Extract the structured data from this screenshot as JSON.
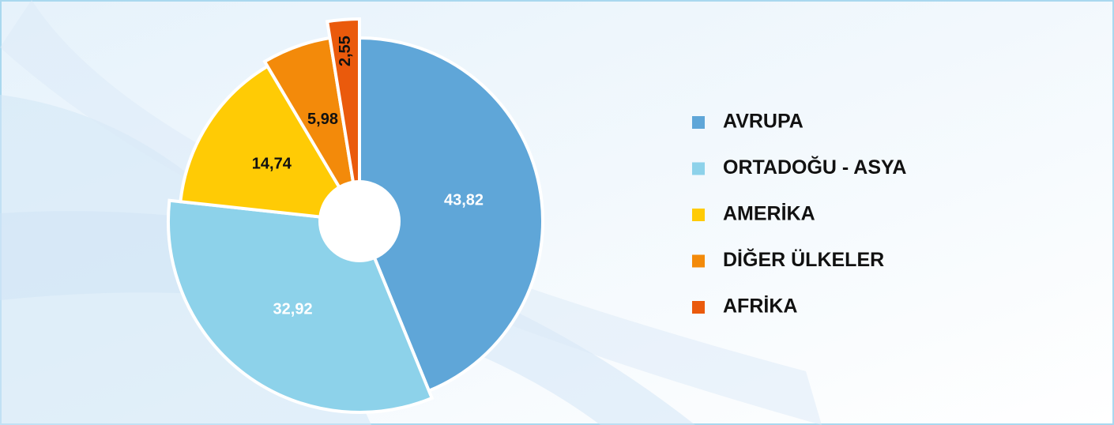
{
  "chart_data": {
    "type": "pie",
    "categories": [
      "AVRUPA",
      "ORTADOĞU - ASYA",
      "AMERİKA",
      "DİĞER ÜLKELER",
      "AFRİKA"
    ],
    "values": [
      43.82,
      32.92,
      14.74,
      5.98,
      2.55
    ],
    "value_labels": [
      "43,82",
      "32,92",
      "14,74",
      "5,98",
      "2,55"
    ],
    "colors": [
      "#5fa6d8",
      "#8dd2ea",
      "#ffcb05",
      "#f38a0a",
      "#ea5a0c"
    ],
    "legend": "right"
  }
}
